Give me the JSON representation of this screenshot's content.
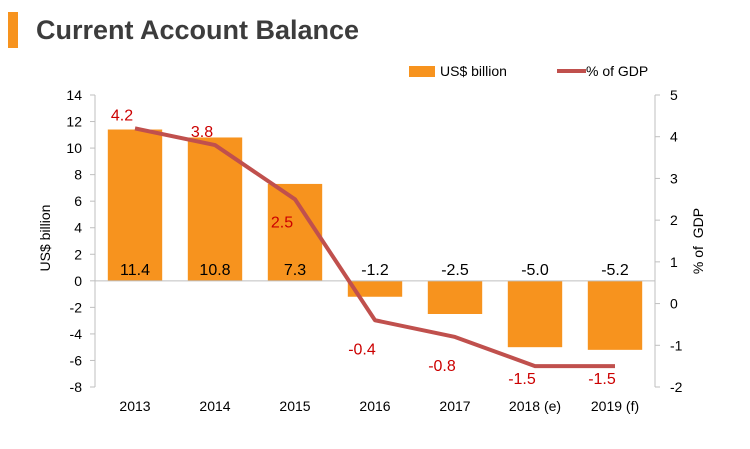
{
  "chart_data": {
    "type": "bar",
    "title": "Current Account Balance",
    "categories": [
      "2013",
      "2014",
      "2015",
      "2016",
      "2017",
      "2018 (e)",
      "2019 (f)"
    ],
    "series": [
      {
        "name": "US$ billion",
        "type": "bar",
        "axis": "left",
        "values": [
          11.4,
          10.8,
          7.3,
          -1.2,
          -2.5,
          -5.0,
          -5.2
        ],
        "labels": [
          "11.4",
          "10.8",
          "7.3",
          "-1.2",
          "-2.5",
          "-5.0",
          "-5.2"
        ],
        "color": "#f7931e"
      },
      {
        "name": "% of GDP",
        "type": "line",
        "axis": "right",
        "values": [
          4.2,
          3.8,
          2.5,
          -0.4,
          -0.8,
          -1.5,
          -1.5
        ],
        "labels": [
          "4.2",
          "3.8",
          "2.5",
          "-0.4",
          "-0.8",
          "-1.5",
          "-1.5"
        ],
        "color": "#c0504d",
        "label_color": "#cc0000"
      }
    ],
    "ylabel": "US$ billion",
    "ylim": [
      -8,
      14
    ],
    "yticks": [
      "14",
      "12",
      "10",
      "8",
      "6",
      "4",
      "2",
      "0",
      "-2",
      "-4",
      "-6",
      "-8"
    ],
    "y2label": "% of  GDP",
    "y2lim": [
      -2,
      5
    ],
    "y2ticks": [
      "5",
      "4",
      "3",
      "2",
      "1",
      "0",
      "-1",
      "-2"
    ],
    "legend": "top-right",
    "grid": false
  }
}
